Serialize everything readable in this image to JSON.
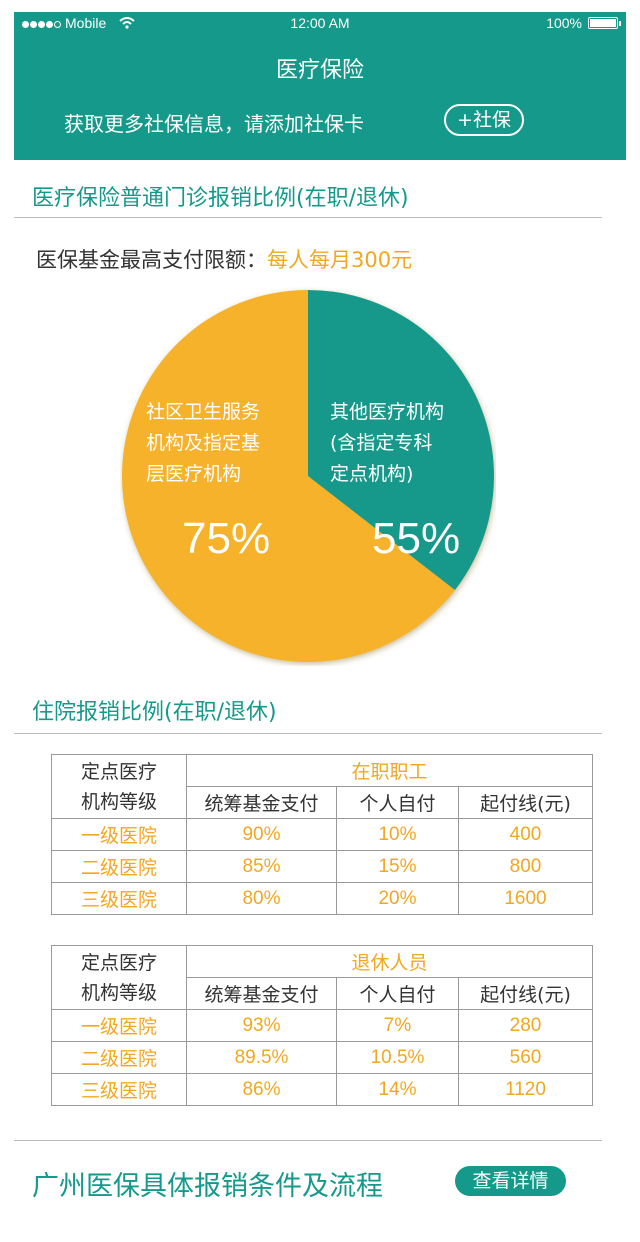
{
  "status_bar": {
    "carrier": "Mobile",
    "time": "12:00 AM",
    "battery": "100%"
  },
  "header": {
    "title": "医疗保险",
    "promo_text": "获取更多社保信息，请添加社保卡",
    "add_button": "+社保"
  },
  "outpatient": {
    "title": "医疗保险普通门诊报销比例(在职/退休)",
    "limit_label": "医保基金最高支付限额：",
    "limit_value": "每人每月300元"
  },
  "chart_data": {
    "type": "pie",
    "slices": [
      {
        "label_lines": [
          "其他医疗机构",
          "(含指定专科",
          "定点机构)"
        ],
        "value": 55,
        "display": "55%",
        "color": "#15998a"
      },
      {
        "label_lines": [
          "社区卫生服务",
          "机构及指定基",
          "层医疗机构"
        ],
        "value": 75,
        "display": "75%",
        "color": "#f5b22a"
      }
    ]
  },
  "inpatient": {
    "title": "住院报销比例(在职/退休)",
    "tables": [
      {
        "corner": [
          "定点医疗",
          "机构等级"
        ],
        "group": "在职职工",
        "columns": [
          "统筹基金支付",
          "个人自付",
          "起付线(元)"
        ],
        "rows": [
          {
            "level": "一级医院",
            "fund": "90%",
            "self": "10%",
            "deductible": "400"
          },
          {
            "level": "二级医院",
            "fund": "85%",
            "self": "15%",
            "deductible": "800"
          },
          {
            "level": "三级医院",
            "fund": "80%",
            "self": "20%",
            "deductible": "1600"
          }
        ]
      },
      {
        "corner": [
          "定点医疗",
          "机构等级"
        ],
        "group": "退休人员",
        "columns": [
          "统筹基金支付",
          "个人自付",
          "起付线(元)"
        ],
        "rows": [
          {
            "level": "一级医院",
            "fund": "93%",
            "self": "7%",
            "deductible": "280"
          },
          {
            "level": "二级医院",
            "fund": "89.5%",
            "self": "10.5%",
            "deductible": "560"
          },
          {
            "level": "三级医院",
            "fund": "86%",
            "self": "14%",
            "deductible": "1120"
          }
        ]
      }
    ]
  },
  "footer": {
    "title": "广州医保具体报销条件及流程",
    "detail_button": "查看详情"
  }
}
